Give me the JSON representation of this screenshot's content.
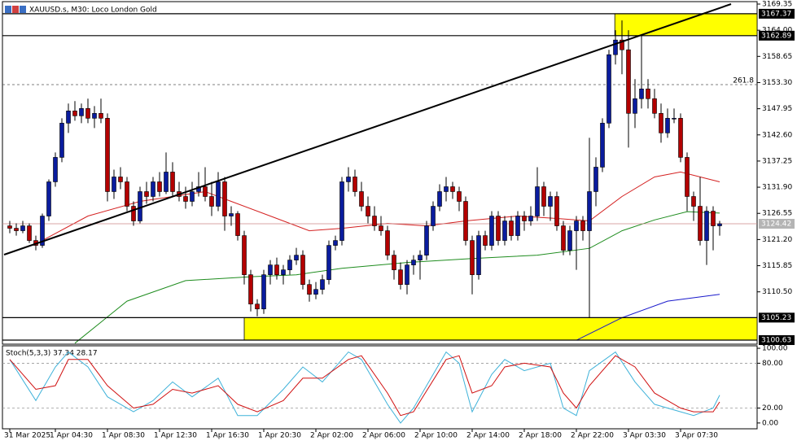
{
  "chart_data": {
    "type": "candlestick",
    "title": "XAUUSD.s, M30: Loco London Gold",
    "up_color": "#0a1c9e",
    "down_color": "#b30000",
    "candles": [
      [
        3124,
        3125,
        3122.5,
        3123.5
      ],
      [
        3123.5,
        3124.5,
        3122,
        3123
      ],
      [
        3123,
        3125,
        3122.5,
        3124
      ],
      [
        3124,
        3124.5,
        3120.5,
        3121
      ],
      [
        3121,
        3122,
        3119,
        3120
      ],
      [
        3120,
        3126.5,
        3119.5,
        3126
      ],
      [
        3126,
        3133.5,
        3125,
        3133
      ],
      [
        3133,
        3139,
        3132,
        3138
      ],
      [
        3138,
        3146,
        3137,
        3145
      ],
      [
        3145,
        3149,
        3143,
        3147.5
      ],
      [
        3147.5,
        3149.5,
        3145.5,
        3146.5
      ],
      [
        3146.5,
        3149,
        3145,
        3148
      ],
      [
        3148,
        3150,
        3145,
        3146
      ],
      [
        3146,
        3148.5,
        3144,
        3147
      ],
      [
        3147,
        3150,
        3145,
        3146
      ],
      [
        3146,
        3147,
        3129,
        3131
      ],
      [
        3131,
        3135.5,
        3129.5,
        3134
      ],
      [
        3134,
        3136,
        3131.5,
        3133
      ],
      [
        3133,
        3134,
        3127,
        3128
      ],
      [
        3128,
        3129,
        3124,
        3125
      ],
      [
        3125,
        3132,
        3124.5,
        3131
      ],
      [
        3131,
        3133,
        3128.5,
        3130
      ],
      [
        3130,
        3134,
        3129,
        3133
      ],
      [
        3133,
        3135,
        3130,
        3131
      ],
      [
        3131,
        3139,
        3130.5,
        3135
      ],
      [
        3135,
        3137,
        3130,
        3131
      ],
      [
        3131,
        3133,
        3129,
        3130
      ],
      [
        3130,
        3132,
        3127.5,
        3129
      ],
      [
        3129,
        3133,
        3128,
        3131
      ],
      [
        3131,
        3135,
        3130,
        3132
      ],
      [
        3132,
        3136,
        3129,
        3130
      ],
      [
        3130,
        3133,
        3126,
        3128
      ],
      [
        3128,
        3135,
        3127,
        3133
      ],
      [
        3133,
        3134,
        3123,
        3126
      ],
      [
        3126,
        3128,
        3124,
        3126.5
      ],
      [
        3126.5,
        3127,
        3121,
        3122
      ],
      [
        3122,
        3123,
        3112,
        3114
      ],
      [
        3114,
        3115,
        3106.5,
        3108
      ],
      [
        3108,
        3109,
        3105.5,
        3107
      ],
      [
        3107,
        3115,
        3106,
        3114
      ],
      [
        3114,
        3117,
        3112,
        3116
      ],
      [
        3116,
        3117.5,
        3113,
        3114
      ],
      [
        3114,
        3116,
        3112,
        3115
      ],
      [
        3115,
        3118,
        3114,
        3117
      ],
      [
        3117,
        3119.5,
        3116,
        3118
      ],
      [
        3118,
        3119,
        3111,
        3112
      ],
      [
        3112,
        3113,
        3108.5,
        3110
      ],
      [
        3110,
        3112.5,
        3109,
        3111
      ],
      [
        3111,
        3114,
        3110,
        3113
      ],
      [
        3113,
        3121,
        3112,
        3120
      ],
      [
        3120,
        3122,
        3119,
        3121
      ],
      [
        3121,
        3134,
        3120,
        3133
      ],
      [
        3133,
        3136,
        3131,
        3134
      ],
      [
        3134,
        3135.5,
        3130,
        3131
      ],
      [
        3131,
        3133,
        3127,
        3128
      ],
      [
        3128,
        3130,
        3124.5,
        3126
      ],
      [
        3126,
        3128,
        3123,
        3124
      ],
      [
        3124,
        3126,
        3122,
        3123
      ],
      [
        3123,
        3124,
        3117,
        3118
      ],
      [
        3118,
        3119,
        3113,
        3115
      ],
      [
        3115,
        3116.5,
        3111,
        3112
      ],
      [
        3112,
        3117,
        3110,
        3116
      ],
      [
        3116,
        3118,
        3114,
        3117
      ],
      [
        3117,
        3119,
        3113,
        3118
      ],
      [
        3118,
        3125,
        3117,
        3124
      ],
      [
        3124,
        3129,
        3123,
        3128
      ],
      [
        3128,
        3132.5,
        3127,
        3131
      ],
      [
        3131,
        3134,
        3129,
        3132
      ],
      [
        3132,
        3133,
        3129.5,
        3131
      ],
      [
        3131,
        3132,
        3127,
        3129
      ],
      [
        3129,
        3130,
        3120,
        3121
      ],
      [
        3121,
        3122,
        3110,
        3114
      ],
      [
        3114,
        3123,
        3113,
        3122
      ],
      [
        3122,
        3123,
        3119,
        3120
      ],
      [
        3120,
        3127,
        3119,
        3126
      ],
      [
        3126,
        3127,
        3120,
        3121
      ],
      [
        3121,
        3126,
        3120,
        3125
      ],
      [
        3125,
        3126,
        3121,
        3122
      ],
      [
        3122,
        3127,
        3121,
        3126
      ],
      [
        3126,
        3127,
        3123,
        3125
      ],
      [
        3125,
        3128,
        3124,
        3126
      ],
      [
        3126,
        3136,
        3125,
        3132
      ],
      [
        3132,
        3133,
        3126,
        3128
      ],
      [
        3128,
        3131,
        3125,
        3130
      ],
      [
        3130,
        3131,
        3123,
        3124
      ],
      [
        3124,
        3125,
        3118,
        3119
      ],
      [
        3119,
        3124,
        3118,
        3123
      ],
      [
        3123,
        3126,
        3115,
        3125
      ],
      [
        3125,
        3126,
        3121,
        3123
      ],
      [
        3123,
        3142,
        3105.2,
        3131
      ],
      [
        3131,
        3138,
        3128,
        3136
      ],
      [
        3136,
        3146,
        3135,
        3145
      ],
      [
        3145,
        3160,
        3144,
        3159
      ],
      [
        3159,
        3164,
        3157,
        3162
      ],
      [
        3162,
        3166,
        3155,
        3160
      ],
      [
        3160,
        3164,
        3140,
        3147
      ],
      [
        3147,
        3154,
        3144,
        3150
      ],
      [
        3150,
        3163,
        3148,
        3152
      ],
      [
        3152,
        3154,
        3148,
        3150
      ],
      [
        3150,
        3152,
        3146,
        3147
      ],
      [
        3147,
        3149,
        3141,
        3143
      ],
      [
        3143,
        3148,
        3142,
        3146
      ],
      [
        3146,
        3148,
        3145,
        3146
      ],
      [
        3146,
        3147,
        3137,
        3138
      ],
      [
        3138,
        3139,
        3127,
        3130
      ],
      [
        3130,
        3131,
        3125,
        3128
      ],
      [
        3128,
        3134,
        3120,
        3121
      ],
      [
        3121,
        3128,
        3116,
        3127
      ],
      [
        3127,
        3128,
        3119,
        3124
      ],
      [
        3124,
        3125,
        3122,
        3124.42
      ]
    ],
    "xlim": [
      -1.5,
      114.75
    ],
    "xticks": [
      {
        "value": 0,
        "label": "31 Mar 2025"
      },
      {
        "value": 7,
        "label": "1 Apr 04:30"
      },
      {
        "value": 15,
        "label": "1 Apr 08:30"
      },
      {
        "value": 23,
        "label": "1 Apr 12:30"
      },
      {
        "value": 31,
        "label": "1 Apr 16:30"
      },
      {
        "value": 39,
        "label": "1 Apr 20:30"
      },
      {
        "value": 47,
        "label": "2 Apr 02:00"
      },
      {
        "value": 55,
        "label": "2 Apr 06:00"
      },
      {
        "value": 63,
        "label": "2 Apr 10:00"
      },
      {
        "value": 71,
        "label": "2 Apr 14:00"
      },
      {
        "value": 79,
        "label": "2 Apr 18:00"
      },
      {
        "value": 87,
        "label": "2 Apr 22:00"
      },
      {
        "value": 95,
        "label": "3 Apr 03:30"
      },
      {
        "value": 103,
        "label": "3 Apr 07:30"
      }
    ],
    "ylim": [
      3099.8,
      3169.85
    ],
    "yticks": [
      3169.35,
      {
        "value": 3164,
        "label": "3164.00"
      },
      3158.65,
      {
        "value": 3153.3,
        "label": "3153.30"
      },
      3147.95,
      {
        "value": 3142.6,
        "label": "3142.60"
      },
      3137.25,
      {
        "value": 3131.9,
        "label": "3131.90"
      },
      3126.55,
      {
        "value": 3121.2,
        "label": "3121.20"
      },
      3115.85,
      {
        "value": 3110.5,
        "label": "3110.50"
      }
    ],
    "levels": [
      3167.37,
      3162.89,
      3105.23,
      3100.63
    ],
    "current_price": 3124.42,
    "zones": [
      {
        "x_start": 92.9,
        "y_range": [
          3162.89,
          3167.37
        ],
        "color": "#ffff00"
      },
      {
        "x_start": 36,
        "y_range": [
          3100.63,
          3105.23
        ],
        "color": "#ffff00"
      }
    ],
    "fib_level": {
      "value": 3152.88,
      "label": "261.8"
    },
    "trendline": {
      "x": [
        -0.875,
        110.75
      ],
      "values": [
        3118.1,
        3169.35
      ],
      "color": "#000000"
    },
    "moving_averages": [
      {
        "color": "#d42020",
        "x": [
          5,
          12,
          20,
          30,
          34,
          40,
          46,
          51,
          58,
          64,
          70,
          78,
          84,
          89,
          94,
          99,
          103,
          109
        ],
        "values": [
          3121,
          3126,
          3129,
          3131,
          3129,
          3126,
          3123,
          3123.5,
          3124.5,
          3124,
          3125,
          3126,
          3125.5,
          3125,
          3130,
          3134,
          3135,
          3133
        ]
      },
      {
        "color": "#1e8c1e",
        "x": [
          10,
          18,
          27,
          37,
          44,
          51,
          61,
          71,
          81,
          89,
          94,
          99,
          104,
          109
        ],
        "values": [
          3100,
          3108.6,
          3112.8,
          3113.6,
          3114,
          3115.3,
          3116.5,
          3117.3,
          3118,
          3119.4,
          3123,
          3125.2,
          3126.9,
          3126.6
        ]
      },
      {
        "color": "#1a1acc",
        "x": [
          87,
          94,
          101,
          109
        ],
        "values": [
          3100.6,
          3105.2,
          3108.6,
          3110
        ]
      }
    ],
    "indicator": {
      "label": "Stoch(5,3,3) 37.34 28.17",
      "ylim": [
        -7.78,
        103.33
      ],
      "yticks": [
        {
          "value": 100,
          "label": "100.00"
        },
        {
          "value": 80,
          "label": "80.00"
        },
        {
          "value": 20,
          "label": "20.00"
        },
        {
          "value": 0,
          "label": "0.00"
        }
      ],
      "levels": [
        80,
        20
      ],
      "series": [
        {
          "color": "#3fb2d9",
          "x": [
            0,
            4,
            7,
            9,
            12,
            15,
            19,
            22,
            25,
            28,
            32,
            35,
            38,
            42,
            45,
            48,
            52,
            54,
            58,
            60,
            62,
            67,
            69,
            71,
            74,
            76,
            79,
            83,
            85,
            87,
            89,
            93,
            96,
            99,
            103,
            105,
            108,
            109
          ],
          "values": [
            85,
            30,
            75,
            95,
            75,
            35,
            15,
            30,
            55,
            35,
            60,
            10,
            10,
            45,
            75,
            55,
            95,
            85,
            25,
            0,
            20,
            95,
            80,
            15,
            65,
            85,
            70,
            80,
            20,
            10,
            70,
            95,
            55,
            25,
            15,
            10,
            20,
            37.34
          ]
        },
        {
          "color": "#d01010",
          "x": [
            0,
            4,
            7,
            9,
            12,
            15,
            19,
            22,
            25,
            28,
            32,
            35,
            38,
            42,
            45,
            48,
            52,
            54,
            58,
            60,
            62,
            67,
            69,
            71,
            74,
            76,
            79,
            83,
            85,
            87,
            89,
            93,
            96,
            99,
            103,
            105,
            108,
            109
          ],
          "values": [
            85,
            45,
            50,
            85,
            85,
            50,
            20,
            25,
            45,
            40,
            50,
            25,
            15,
            30,
            60,
            60,
            85,
            90,
            40,
            10,
            15,
            85,
            90,
            40,
            50,
            75,
            80,
            75,
            40,
            20,
            50,
            90,
            75,
            40,
            20,
            15,
            15,
            28.17
          ]
        }
      ]
    }
  }
}
